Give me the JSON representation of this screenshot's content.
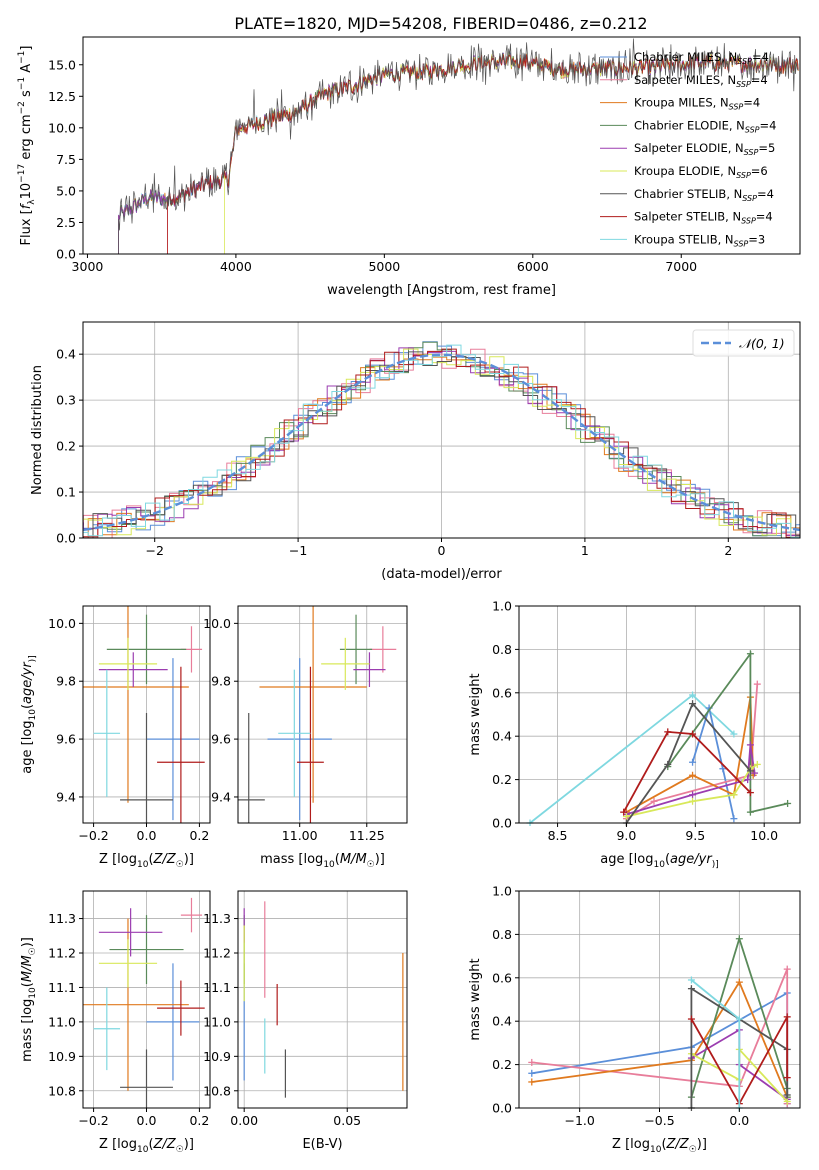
{
  "figure_title": "PLATE=1820, MJD=54208, FIBERID=0486, z=0.212",
  "colors": {
    "chabrier_miles": "#5b8fd9",
    "salpeter_miles": "#e87d9a",
    "kroupa_miles": "#e07a1f",
    "chabrier_elodie": "#5a8a5a",
    "salpeter_elodie": "#9b3db0",
    "kroupa_elodie": "#d8e85a",
    "chabrier_stelib": "#555555",
    "salpeter_stelib": "#b01c1c",
    "kroupa_stelib": "#7fd8e0",
    "gaussian": "#5b8fd9",
    "grid": "#b0b0b0"
  },
  "chart_data": [
    {
      "id": "spectrum",
      "type": "line",
      "title": "PLATE=1820, MJD=54208, FIBERID=0486, z=0.212",
      "xlabel": "wavelength [Angstrom, rest frame]",
      "ylabel": "Flux [f_λ 10^-17 erg cm^-2 s^-1 A^-1]",
      "ylabel_parts": [
        "Flux [",
        "f",
        "λ",
        "10",
        "−17",
        " erg cm",
        "−2",
        " s",
        "−1",
        " A",
        "−1",
        "]"
      ],
      "xlim": [
        2970,
        7800
      ],
      "ylim": [
        0,
        17.2
      ],
      "xticks": [
        3000,
        4000,
        5000,
        6000,
        7000
      ],
      "yticks": [
        0.0,
        2.5,
        5.0,
        7.5,
        10.0,
        12.5,
        15.0
      ],
      "ytick_labels": [
        "0.0",
        "2.5",
        "5.0",
        "7.5",
        "10.0",
        "12.5",
        "15.0"
      ],
      "grid": false,
      "legend_placement": "right",
      "legend": [
        {
          "pre": "Chabrier MILES, N",
          "sub": "SSP",
          "post": "=4",
          "color_key": "chabrier_miles"
        },
        {
          "pre": "Salpeter MILES, N",
          "sub": "SSP",
          "post": "=4",
          "color_key": "salpeter_miles"
        },
        {
          "pre": "Kroupa MILES, N",
          "sub": "SSP",
          "post": "=4",
          "color_key": "kroupa_miles"
        },
        {
          "pre": "Chabrier ELODIE, N",
          "sub": "SSP",
          "post": "=4",
          "color_key": "chabrier_elodie"
        },
        {
          "pre": "Salpeter ELODIE, N",
          "sub": "SSP",
          "post": "=5",
          "color_key": "salpeter_elodie"
        },
        {
          "pre": "Kroupa ELODIE, N",
          "sub": "SSP",
          "post": "=6",
          "color_key": "kroupa_elodie"
        },
        {
          "pre": "Chabrier STELIB, N",
          "sub": "SSP",
          "post": "=4",
          "color_key": "chabrier_stelib"
        },
        {
          "pre": "Salpeter STELIB, N",
          "sub": "SSP",
          "post": "=4",
          "color_key": "salpeter_stelib"
        },
        {
          "pre": "Kroupa STELIB, N",
          "sub": "SSP",
          "post": "=3",
          "color_key": "kroupa_stelib"
        }
      ],
      "continuum": [
        [
          3210,
          3.0
        ],
        [
          3400,
          4.4
        ],
        [
          3600,
          4.5
        ],
        [
          3800,
          5.6
        ],
        [
          3950,
          6.0
        ],
        [
          4000,
          9.8
        ],
        [
          4200,
          10.6
        ],
        [
          4400,
          11.2
        ],
        [
          4600,
          12.7
        ],
        [
          4800,
          13.4
        ],
        [
          5000,
          14.2
        ],
        [
          5300,
          14.5
        ],
        [
          5600,
          15.1
        ],
        [
          5900,
          15.3
        ],
        [
          6200,
          14.6
        ],
        [
          6500,
          14.7
        ],
        [
          6800,
          14.8
        ],
        [
          7100,
          15.2
        ],
        [
          7400,
          15.1
        ],
        [
          7700,
          15.0
        ]
      ],
      "model_start_wavelengths": {
        "salpeter_miles": 3540,
        "salpeter_stelib": 3540,
        "kroupa_elodie": 3920,
        "chabrier_stelib": 3210
      }
    },
    {
      "id": "residuals",
      "type": "histogram",
      "xlabel": "(data-model)/error",
      "ylabel": "Normed distribution",
      "xlim": [
        -2.5,
        2.5
      ],
      "ylim": [
        0,
        0.47
      ],
      "xticks": [
        -2,
        -1,
        0,
        1,
        2
      ],
      "xtick_labels": [
        "−2",
        "−1",
        "0",
        "1",
        "2"
      ],
      "yticks": [
        0.0,
        0.1,
        0.2,
        0.3,
        0.4
      ],
      "ytick_labels": [
        "0.0",
        "0.1",
        "0.2",
        "0.3",
        "0.4"
      ],
      "grid": true,
      "legend": [
        {
          "label": "N(0,1)",
          "color_key": "gaussian"
        }
      ],
      "legend_placement": "top-right",
      "bin_width": 0.1,
      "gaussian": {
        "mu": 0,
        "sigma": 1
      }
    },
    {
      "id": "age_vs_Z",
      "type": "scatter",
      "xlabel": "Z [log10(Z/Z☉)]",
      "xlabel_parts": [
        "Z [log",
        "10",
        "(",
        "Z/Z",
        "☉",
        ")]"
      ],
      "ylabel": "age [log10(age/yr)]",
      "ylabel_parts": [
        "age  [log",
        "10",
        "(",
        "age/yr",
        ")]"
      ],
      "xlim": [
        -0.24,
        0.24
      ],
      "ylim": [
        9.31,
        10.06
      ],
      "xticks": [
        -0.2,
        0.0,
        0.2
      ],
      "xtick_labels": [
        "−0.2",
        "0.0",
        "0.2"
      ],
      "yticks": [
        9.4,
        9.6,
        9.8,
        10.0
      ],
      "ytick_labels": [
        "9.4",
        "9.6",
        "9.8",
        "10.0"
      ],
      "grid": true,
      "points": [
        {
          "color_key": "chabrier_miles",
          "x": 0.1,
          "xerr": 0.1,
          "y": 9.6,
          "yerr": 0.28
        },
        {
          "color_key": "salpeter_miles",
          "x": 0.17,
          "xerr": 0.04,
          "y": 9.91,
          "yerr": 0.08
        },
        {
          "color_key": "kroupa_miles",
          "x": -0.07,
          "xerr": 0.23,
          "y": 9.78,
          "yerr": 0.4
        },
        {
          "color_key": "chabrier_elodie",
          "x": 0.0,
          "xerr": 0.15,
          "y": 9.91,
          "yerr": 0.12
        },
        {
          "color_key": "salpeter_elodie",
          "x": -0.05,
          "xerr": 0.13,
          "y": 9.84,
          "yerr": 0.06
        },
        {
          "color_key": "kroupa_elodie",
          "x": -0.07,
          "xerr": 0.11,
          "y": 9.86,
          "yerr": 0.09
        },
        {
          "color_key": "chabrier_stelib",
          "x": 0.0,
          "xerr": 0.1,
          "y": 9.39,
          "yerr": 0.3
        },
        {
          "color_key": "salpeter_stelib",
          "x": 0.13,
          "xerr": 0.09,
          "y": 9.52,
          "yerr": 0.33
        },
        {
          "color_key": "kroupa_stelib",
          "x": -0.15,
          "xerr": 0.05,
          "y": 9.62,
          "yerr": 0.22
        }
      ]
    },
    {
      "id": "age_vs_mass",
      "type": "scatter",
      "xlabel": "mass [log10(M/M☉)]",
      "xlabel_parts": [
        "mass [log",
        "10",
        "(",
        "M/M",
        "☉",
        ")]"
      ],
      "xlim": [
        10.77,
        11.4
      ],
      "ylim": [
        9.31,
        10.06
      ],
      "xticks": [
        11.0,
        11.25
      ],
      "xtick_labels": [
        "11.00",
        "11.25"
      ],
      "yticks": [
        9.4,
        9.6,
        9.8,
        10.0
      ],
      "ytick_labels": [
        "9.4",
        "9.6",
        "9.8",
        "10.0"
      ],
      "grid": true,
      "points": [
        {
          "color_key": "chabrier_miles",
          "x": 11.0,
          "xerr": 0.12,
          "y": 9.6,
          "yerr": 0.28
        },
        {
          "color_key": "salpeter_miles",
          "x": 11.31,
          "xerr": 0.05,
          "y": 9.91,
          "yerr": 0.08
        },
        {
          "color_key": "kroupa_miles",
          "x": 11.05,
          "xerr": 0.2,
          "y": 9.78,
          "yerr": 0.4
        },
        {
          "color_key": "chabrier_elodie",
          "x": 11.21,
          "xerr": 0.06,
          "y": 9.91,
          "yerr": 0.12
        },
        {
          "color_key": "salpeter_elodie",
          "x": 11.26,
          "xerr": 0.06,
          "y": 9.84,
          "yerr": 0.06
        },
        {
          "color_key": "kroupa_elodie",
          "x": 11.17,
          "xerr": 0.09,
          "y": 9.86,
          "yerr": 0.09
        },
        {
          "color_key": "chabrier_stelib",
          "x": 10.81,
          "xerr": 0.06,
          "y": 9.39,
          "yerr": 0.3
        },
        {
          "color_key": "salpeter_stelib",
          "x": 11.04,
          "xerr": 0.05,
          "y": 9.52,
          "yerr": 0.33
        },
        {
          "color_key": "kroupa_stelib",
          "x": 10.98,
          "xerr": 0.06,
          "y": 9.62,
          "yerr": 0.22
        }
      ]
    },
    {
      "id": "weight_vs_age",
      "type": "line",
      "xlabel": "age  [log10(age/yr)]",
      "xlabel_parts": [
        "age  [log",
        "10",
        "(",
        "age/yr",
        ")]"
      ],
      "ylabel": "mass weight",
      "xlim": [
        8.22,
        10.26
      ],
      "ylim": [
        0,
        1
      ],
      "xticks": [
        8.5,
        9.0,
        9.5,
        10.0
      ],
      "xtick_labels": [
        "8.5",
        "9.0",
        "9.5",
        "10.0"
      ],
      "yticks": [
        0.0,
        0.2,
        0.4,
        0.6,
        0.8,
        1.0
      ],
      "ytick_labels": [
        "0.0",
        "0.2",
        "0.4",
        "0.6",
        "0.8",
        "1.0"
      ],
      "grid": true,
      "series": [
        {
          "color_key": "kroupa_stelib",
          "x": [
            8.3,
            9.48,
            9.78
          ],
          "y": [
            0.0,
            0.59,
            0.41
          ]
        },
        {
          "color_key": "chabrier_miles",
          "x": [
            9.48,
            9.6,
            9.7,
            9.78
          ],
          "y": [
            0.28,
            0.53,
            0.25,
            0.02
          ]
        },
        {
          "color_key": "salpeter_miles",
          "x": [
            9.0,
            9.2,
            9.9,
            9.95
          ],
          "y": [
            0.02,
            0.1,
            0.22,
            0.64
          ]
        },
        {
          "color_key": "kroupa_miles",
          "x": [
            9.0,
            9.48,
            9.78,
            9.9,
            9.92
          ],
          "y": [
            0.05,
            0.22,
            0.13,
            0.58,
            0.22
          ]
        },
        {
          "color_key": "chabrier_elodie",
          "x": [
            9.3,
            9.9,
            9.9,
            10.17
          ],
          "y": [
            0.26,
            0.78,
            0.05,
            0.09
          ]
        },
        {
          "color_key": "salpeter_elodie",
          "x": [
            9.0,
            9.48,
            9.88,
            9.9,
            9.93
          ],
          "y": [
            0.04,
            0.13,
            0.2,
            0.36,
            0.23
          ]
        },
        {
          "color_key": "kroupa_elodie",
          "x": [
            9.0,
            9.48,
            9.78,
            9.9,
            9.95
          ],
          "y": [
            0.03,
            0.1,
            0.13,
            0.25,
            0.27
          ]
        },
        {
          "color_key": "chabrier_stelib",
          "x": [
            9.0,
            9.3,
            9.48,
            9.9
          ],
          "y": [
            0.0,
            0.27,
            0.55,
            0.24
          ]
        },
        {
          "color_key": "salpeter_stelib",
          "x": [
            8.98,
            9.3,
            9.48,
            9.9
          ],
          "y": [
            0.05,
            0.42,
            0.41,
            0.14
          ]
        }
      ]
    },
    {
      "id": "mass_vs_Z",
      "type": "scatter",
      "xlabel": "Z [log10(Z/Z☉)]",
      "xlabel_parts": [
        "Z [log",
        "10",
        "(",
        "Z/Z",
        "☉",
        ")]"
      ],
      "ylabel": "mass [log10(M/M☉)]",
      "ylabel_parts": [
        "mass [log",
        "10",
        "(",
        "M/M",
        "☉",
        ")]"
      ],
      "xlim": [
        -0.24,
        0.24
      ],
      "ylim": [
        10.75,
        11.38
      ],
      "xticks": [
        -0.2,
        0.0,
        0.2
      ],
      "xtick_labels": [
        "−0.2",
        "0.0",
        "0.2"
      ],
      "yticks": [
        10.8,
        10.9,
        11.0,
        11.1,
        11.2,
        11.3
      ],
      "ytick_labels": [
        "10.8",
        "10.9",
        "11.0",
        "11.1",
        "11.2",
        "11.3"
      ],
      "grid": true,
      "points": [
        {
          "color_key": "chabrier_miles",
          "x": 0.1,
          "xerr": 0.1,
          "y": 11.0,
          "yerr": 0.17
        },
        {
          "color_key": "salpeter_miles",
          "x": 0.17,
          "xerr": 0.04,
          "y": 11.31,
          "yerr": 0.05
        },
        {
          "color_key": "kroupa_miles",
          "x": -0.07,
          "xerr": 0.23,
          "y": 11.05,
          "yerr": 0.25
        },
        {
          "color_key": "chabrier_elodie",
          "x": 0.0,
          "xerr": 0.14,
          "y": 11.21,
          "yerr": 0.1
        },
        {
          "color_key": "salpeter_elodie",
          "x": -0.06,
          "xerr": 0.12,
          "y": 11.26,
          "yerr": 0.07
        },
        {
          "color_key": "kroupa_elodie",
          "x": -0.07,
          "xerr": 0.11,
          "y": 11.17,
          "yerr": 0.07
        },
        {
          "color_key": "chabrier_stelib",
          "x": 0.0,
          "xerr": 0.1,
          "y": 10.81,
          "yerr": 0.11
        },
        {
          "color_key": "salpeter_stelib",
          "x": 0.13,
          "xerr": 0.09,
          "y": 11.04,
          "yerr": 0.08
        },
        {
          "color_key": "kroupa_stelib",
          "x": -0.15,
          "xerr": 0.05,
          "y": 10.98,
          "yerr": 0.12
        }
      ]
    },
    {
      "id": "mass_vs_ebv",
      "type": "scatter",
      "xlabel": "E(B-V)",
      "xlim": [
        -0.003,
        0.079
      ],
      "ylim": [
        10.75,
        11.38
      ],
      "xticks": [
        0.0,
        0.05
      ],
      "xtick_labels": [
        "0.00",
        "0.05"
      ],
      "yticks": [
        10.8,
        10.9,
        11.0,
        11.1,
        11.2,
        11.3
      ],
      "ytick_labels": [
        "10.8",
        "10.9",
        "11.0",
        "11.1",
        "11.2",
        "11.3"
      ],
      "grid": true,
      "points": [
        {
          "color_key": "chabrier_miles",
          "x": 0.0,
          "xerr": 0.0,
          "y": 11.0,
          "yerr": 0.17
        },
        {
          "color_key": "salpeter_miles",
          "x": 0.01,
          "xerr": 0.0,
          "y": 11.21,
          "yerr": 0.14
        },
        {
          "color_key": "kroupa_miles",
          "x": 0.077,
          "xerr": 0.0,
          "y": 11.0,
          "yerr": 0.2
        },
        {
          "color_key": "chabrier_elodie",
          "x": 0.0,
          "xerr": 0.0,
          "y": 11.21,
          "yerr": 0.1
        },
        {
          "color_key": "salpeter_elodie",
          "x": 0.0,
          "xerr": 0.0,
          "y": 11.28,
          "yerr": 0.05
        },
        {
          "color_key": "kroupa_elodie",
          "x": 0.0,
          "xerr": 0.0,
          "y": 11.17,
          "yerr": 0.11
        },
        {
          "color_key": "chabrier_stelib",
          "x": 0.02,
          "xerr": 0.0,
          "y": 10.85,
          "yerr": 0.07
        },
        {
          "color_key": "salpeter_stelib",
          "x": 0.016,
          "xerr": 0.0,
          "y": 11.05,
          "yerr": 0.06
        },
        {
          "color_key": "kroupa_stelib",
          "x": 0.01,
          "xerr": 0.0,
          "y": 10.93,
          "yerr": 0.08
        }
      ]
    },
    {
      "id": "weight_vs_Z",
      "type": "line",
      "xlabel": "Z [log10(Z/Z☉)]",
      "xlabel_parts": [
        "Z [log",
        "10",
        "(",
        "Z/Z",
        "☉",
        ")]"
      ],
      "ylabel": "mass weight",
      "xlim": [
        -1.38,
        0.38
      ],
      "ylim": [
        0,
        1
      ],
      "xticks": [
        -1.0,
        -0.5,
        0.0
      ],
      "xtick_labels": [
        "−1.0",
        "−0.5",
        "0.0"
      ],
      "yticks": [
        0.0,
        0.2,
        0.4,
        0.6,
        0.8,
        1.0
      ],
      "ytick_labels": [
        "0.0",
        "0.2",
        "0.4",
        "0.6",
        "0.8",
        "1.0"
      ],
      "grid": true,
      "series": [
        {
          "color_key": "chabrier_miles",
          "x": [
            -1.3,
            -0.3,
            0.3,
            0.3
          ],
          "y": [
            0.16,
            0.28,
            0.53,
            0.02
          ]
        },
        {
          "color_key": "salpeter_miles",
          "x": [
            -1.3,
            0.0,
            0.3,
            0.3
          ],
          "y": [
            0.21,
            0.1,
            0.64,
            0.02
          ]
        },
        {
          "color_key": "kroupa_miles",
          "x": [
            -1.3,
            -0.3,
            0.0,
            0.3
          ],
          "y": [
            0.12,
            0.22,
            0.58,
            0.05
          ]
        },
        {
          "color_key": "chabrier_elodie",
          "x": [
            -0.3,
            0.0,
            0.3,
            0.3
          ],
          "y": [
            0.05,
            0.78,
            0.09,
            0.05
          ]
        },
        {
          "color_key": "salpeter_elodie",
          "x": [
            -0.3,
            0.0,
            0.0,
            0.3
          ],
          "y": [
            0.23,
            0.36,
            0.2,
            0.04
          ]
        },
        {
          "color_key": "kroupa_elodie",
          "x": [
            -0.3,
            0.0,
            0.0,
            0.3
          ],
          "y": [
            0.25,
            0.13,
            0.27,
            0.03
          ]
        },
        {
          "color_key": "chabrier_stelib",
          "x": [
            -0.3,
            -0.3,
            0.3,
            0.3
          ],
          "y": [
            0.0,
            0.55,
            0.27,
            0.06
          ]
        },
        {
          "color_key": "salpeter_stelib",
          "x": [
            -0.3,
            0.0,
            0.3,
            0.3
          ],
          "y": [
            0.41,
            0.02,
            0.42,
            0.14
          ]
        },
        {
          "color_key": "kroupa_stelib",
          "x": [
            -0.3,
            0.0,
            0.0
          ],
          "y": [
            0.59,
            0.41,
            0.0
          ]
        }
      ]
    }
  ]
}
